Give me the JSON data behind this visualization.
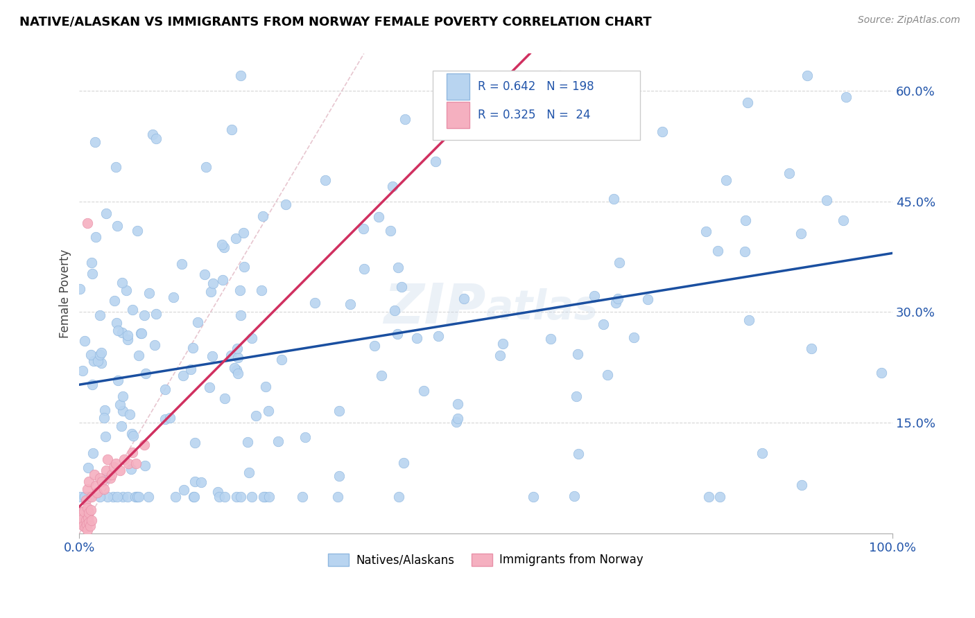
{
  "title": "NATIVE/ALASKAN VS IMMIGRANTS FROM NORWAY FEMALE POVERTY CORRELATION CHART",
  "source": "Source: ZipAtlas.com",
  "ylabel": "Female Poverty",
  "xlim": [
    0,
    1
  ],
  "ylim": [
    0,
    0.65
  ],
  "yticks": [
    0.15,
    0.3,
    0.45,
    0.6
  ],
  "ytick_labels": [
    "15.0%",
    "30.0%",
    "45.0%",
    "60.0%"
  ],
  "xtick_labels": [
    "0.0%",
    "100.0%"
  ],
  "blue_R": 0.642,
  "blue_N": 198,
  "pink_R": 0.325,
  "pink_N": 24,
  "blue_color": "#b8d4f0",
  "pink_color": "#f5b0c0",
  "blue_line_color": "#1a4fa0",
  "pink_line_color": "#d03060",
  "blue_marker_edge": "#90b8e0",
  "pink_marker_edge": "#e890a8",
  "legend_blue_label": "Natives/Alaskans",
  "legend_pink_label": "Immigrants from Norway",
  "watermark": "ZIPAtlas",
  "ref_line_color": "#d0b0b8",
  "grid_color": "#cccccc",
  "axis_label_color": "#2255aa",
  "title_color": "#000000",
  "source_color": "#888888"
}
